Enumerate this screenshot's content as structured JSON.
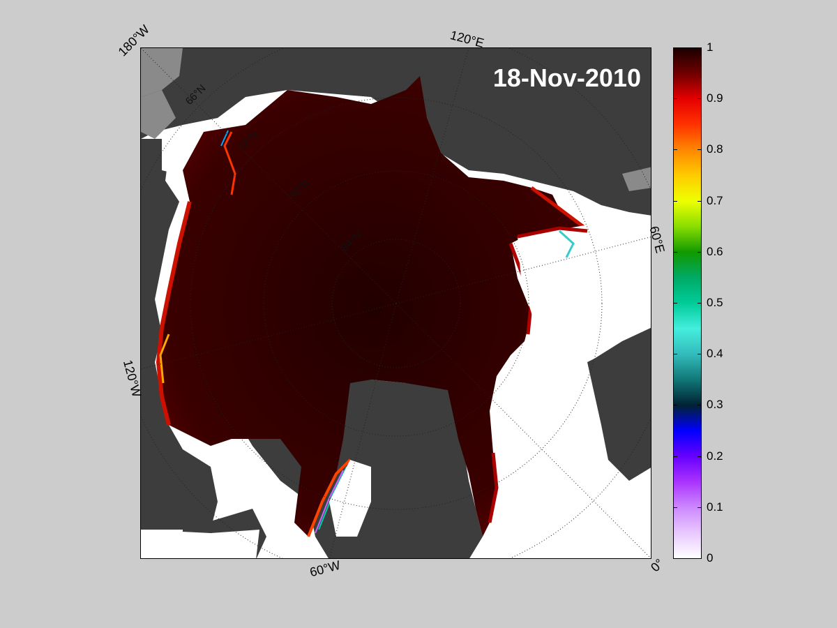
{
  "map": {
    "date": "18-Nov-2010",
    "outer_labels": {
      "nw_corner": "180°W",
      "top": "120°E",
      "right": "60°E",
      "left": "120°W",
      "bottom": "60°W",
      "se_corner": "0°"
    },
    "inner_lat_labels": [
      "66°N",
      "72°N",
      "78°N",
      "84°N"
    ]
  },
  "colorbar": {
    "ticks": [
      "1",
      "0.9",
      "0.8",
      "0.7",
      "0.6",
      "0.5",
      "0.4",
      "0.3",
      "0.2",
      "0.1",
      "0"
    ],
    "stops": [
      {
        "value": 1.0,
        "color": "#1a0000"
      },
      {
        "value": 0.95,
        "color": "#700000"
      },
      {
        "value": 0.9,
        "color": "#e60000"
      },
      {
        "value": 0.85,
        "color": "#ff3300"
      },
      {
        "value": 0.8,
        "color": "#ff8800"
      },
      {
        "value": 0.75,
        "color": "#ffcc00"
      },
      {
        "value": 0.7,
        "color": "#eeff00"
      },
      {
        "value": 0.65,
        "color": "#88dd00"
      },
      {
        "value": 0.6,
        "color": "#119900"
      },
      {
        "value": 0.55,
        "color": "#00aa66"
      },
      {
        "value": 0.5,
        "color": "#00cc99"
      },
      {
        "value": 0.45,
        "color": "#44eedd"
      },
      {
        "value": 0.4,
        "color": "#33bbbb"
      },
      {
        "value": 0.35,
        "color": "#117777"
      },
      {
        "value": 0.3,
        "color": "#002233"
      },
      {
        "value": 0.25,
        "color": "#0000ff"
      },
      {
        "value": 0.2,
        "color": "#6600ff"
      },
      {
        "value": 0.15,
        "color": "#aa33ff"
      },
      {
        "value": 0.1,
        "color": "#cc88ff"
      },
      {
        "value": 0.05,
        "color": "#e8c8ff"
      },
      {
        "value": 0.0,
        "color": "#ffffff"
      }
    ]
  },
  "colors": {
    "background": "#cccccc",
    "land": "#3d3d3d",
    "land_light": "#8a8a8a",
    "ocean": "#ffffff",
    "ice_dark": "#2a0000",
    "ice_red": "#5a0000"
  }
}
